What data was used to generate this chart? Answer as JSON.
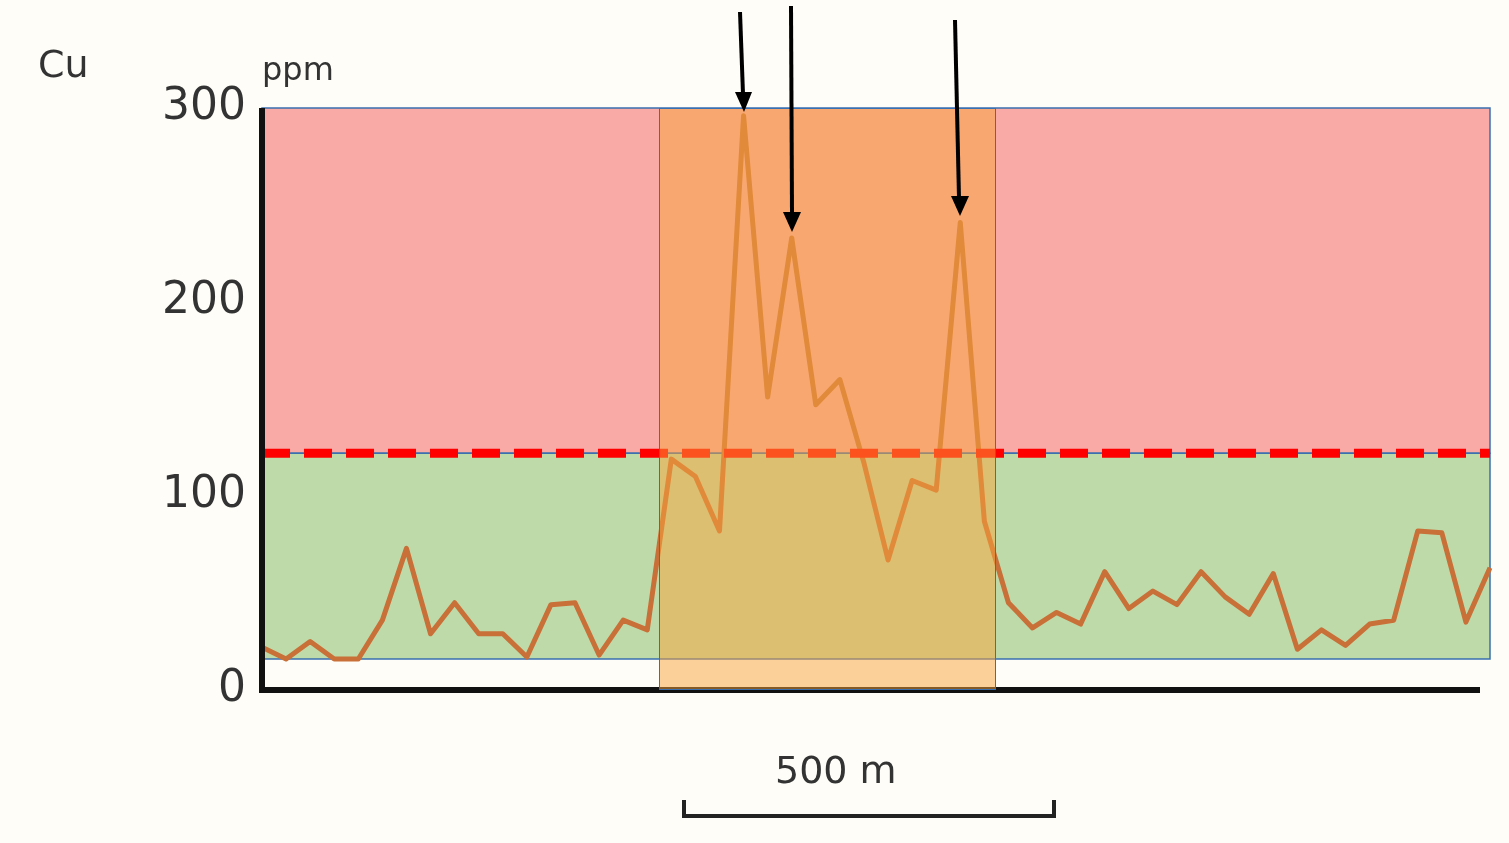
{
  "chart_data": {
    "type": "line",
    "title": "Cu",
    "ylabel": "ppm",
    "categories": [
      null,
      null,
      null,
      null,
      null,
      null,
      null,
      null,
      null,
      null,
      null,
      null,
      null,
      null,
      null,
      null,
      null,
      null,
      null,
      null,
      null,
      null,
      null,
      null,
      null,
      null,
      null,
      null,
      null,
      null,
      null,
      null,
      null,
      null,
      null,
      null,
      null,
      null,
      null,
      null,
      null,
      null,
      null,
      null,
      null,
      null,
      null,
      null,
      null,
      null,
      null,
      null
    ],
    "series": [
      {
        "color": "#c87038",
        "values": [
          22,
          16,
          25,
          16,
          16,
          36,
          73,
          29,
          45,
          29,
          29,
          17,
          44,
          45,
          18,
          36,
          31,
          119,
          110,
          82,
          296,
          151,
          233,
          147,
          160,
          117,
          67,
          108,
          103,
          241,
          87,
          45,
          32,
          40,
          34,
          61,
          42,
          51,
          44,
          61,
          48,
          39,
          60,
          21,
          31,
          23,
          34,
          36,
          82,
          81,
          35,
          63
        ]
      }
    ],
    "ylim": [
      0,
      300
    ],
    "yticks": [
      0,
      100,
      200,
      300
    ],
    "tick_labels": "y",
    "grid": false,
    "legend": false,
    "marker": "none",
    "bands": [
      {
        "axis": "y",
        "from": 122,
        "to": 300,
        "color": "#f9aaa6"
      },
      {
        "axis": "y",
        "from": 16,
        "to": 122,
        "color": "#bfdaa9"
      }
    ],
    "ref_lines": [
      {
        "axis": "y",
        "value": 122,
        "color": "#ff0000",
        "line_style": "dashed"
      }
    ],
    "annotations": [
      "500 m"
    ]
  }
}
